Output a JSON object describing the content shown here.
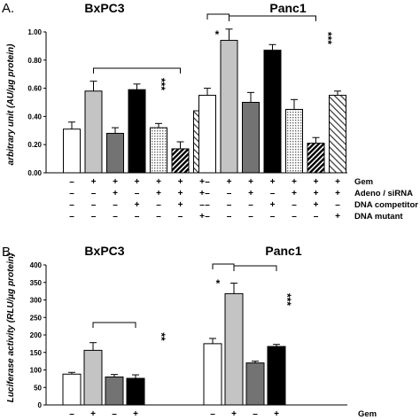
{
  "panels": [
    {
      "letter": "A.",
      "ylabel": "arbitrary unit (AU/µg protein)",
      "ylim": [
        0,
        1.0
      ],
      "yticks": [
        "0.00",
        "0.20",
        "0.40",
        "0.60",
        "0.80",
        "1.00"
      ],
      "row_labels": [
        "Gem",
        "Adeno / siRNA",
        "DNA competitor",
        "DNA mutant"
      ],
      "groups": [
        {
          "title": "BxPC3",
          "signs": [
            [
              "-",
              "+",
              "+",
              "+",
              "+",
              "+",
              "+"
            ],
            [
              "-",
              "-",
              "+",
              "-",
              "+",
              "+",
              "+"
            ],
            [
              "-",
              "-",
              "-",
              "+",
              "-",
              "+",
              "-"
            ],
            [
              "-",
              "-",
              "-",
              "-",
              "-",
              "-",
              "+"
            ]
          ],
          "annotations": [
            {
              "text": "***"
            }
          ]
        },
        {
          "title": "Panc1",
          "signs": [
            [
              "-",
              "+",
              "+",
              "+",
              "+",
              "+",
              "+"
            ],
            [
              "-",
              "-",
              "+",
              "-",
              "+",
              "+",
              "+"
            ],
            [
              "-",
              "-",
              "-",
              "+",
              "-",
              "+",
              "-"
            ],
            [
              "-",
              "-",
              "-",
              "-",
              "-",
              "-",
              "+"
            ]
          ],
          "annotations": [
            {
              "text": "*"
            },
            {
              "text": "***"
            }
          ]
        }
      ]
    },
    {
      "letter": "B.",
      "ylabel": "Luciferase activity (RLU/µg protein)",
      "ylim": [
        0,
        400
      ],
      "yticks": [
        "0",
        "50",
        "100",
        "150",
        "200",
        "250",
        "300",
        "350",
        "400"
      ],
      "row_labels": [
        "Gem"
      ],
      "groups": [
        {
          "title": "BxPC3",
          "signs": [
            [
              "-",
              "+",
              "-",
              "+"
            ]
          ],
          "annotations": [
            {
              "text": "**"
            }
          ]
        },
        {
          "title": "Panc1",
          "signs": [
            [
              "-",
              "+",
              "-",
              "+"
            ]
          ],
          "annotations": [
            {
              "text": "*"
            },
            {
              "text": "***"
            }
          ]
        }
      ]
    }
  ],
  "chart_data": [
    {
      "type": "bar",
      "title": "A.",
      "ylabel": "arbitrary unit (AU/µg protein)",
      "ylim": [
        0,
        1.0
      ],
      "grid": false,
      "groups": [
        {
          "name": "BxPC3",
          "values": [
            0.31,
            0.58,
            0.28,
            0.59,
            0.32,
            0.17,
            0.44
          ],
          "errors": [
            0.05,
            0.07,
            0.04,
            0.04,
            0.03,
            0.05,
            0.06
          ],
          "fills": [
            "white",
            "light-gray",
            "dark-gray",
            "black",
            "dotted",
            "diagonal-black",
            "diagonal-white"
          ]
        },
        {
          "name": "Panc1",
          "values": [
            0.55,
            0.94,
            0.5,
            0.87,
            0.45,
            0.21,
            0.55
          ],
          "errors": [
            0.05,
            0.08,
            0.07,
            0.04,
            0.07,
            0.04,
            0.03
          ],
          "fills": [
            "white",
            "light-gray",
            "dark-gray",
            "black",
            "dotted",
            "diagonal-black",
            "diagonal-white"
          ]
        }
      ]
    },
    {
      "type": "bar",
      "title": "B.",
      "ylabel": "Luciferase activity (RLU/µg protein)",
      "ylim": [
        0,
        400
      ],
      "grid": false,
      "groups": [
        {
          "name": "BxPC3",
          "values": [
            88,
            156,
            80,
            76
          ],
          "errors": [
            5,
            22,
            7,
            10
          ],
          "fills": [
            "white",
            "light-gray",
            "dark-gray",
            "black"
          ]
        },
        {
          "name": "Panc1",
          "values": [
            175,
            318,
            120,
            167
          ],
          "errors": [
            15,
            30,
            5,
            6
          ],
          "fills": [
            "white",
            "light-gray",
            "dark-gray",
            "black"
          ]
        }
      ]
    }
  ]
}
